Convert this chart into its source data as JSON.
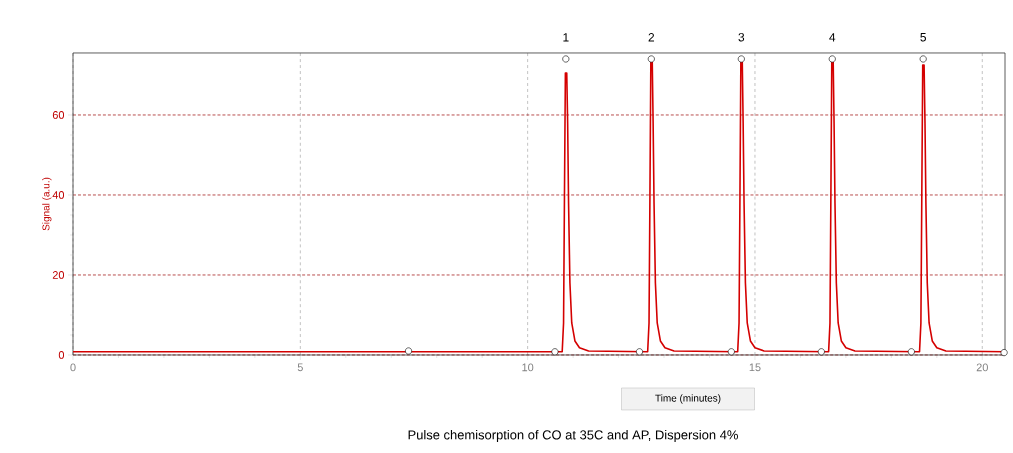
{
  "chart_data": {
    "type": "line",
    "title": "Pulse chemisorption of CO at 35C and AP, Dispersion 4%",
    "xlabel": "Time (minutes)",
    "ylabel": "Signal (a.u.)",
    "annotations": [
      {
        "text": "1",
        "x": 10.84,
        "y": 74
      },
      {
        "text": "2",
        "x": 12.72,
        "y": 74
      },
      {
        "text": "3",
        "x": 14.7,
        "y": 74
      },
      {
        "text": "4",
        "x": 16.7,
        "y": 74
      },
      {
        "text": "5",
        "x": 18.7,
        "y": 74
      }
    ],
    "xlim": [
      0,
      20.5
    ],
    "ylim": [
      0,
      75.5
    ],
    "xticks": [
      0,
      5,
      10,
      15,
      20
    ],
    "yticks": [
      0,
      20,
      40,
      60
    ],
    "grid": true,
    "series": [
      {
        "color": "#d40000",
        "marker": "none",
        "x": [
          0,
          10.76,
          10.79,
          10.81,
          10.83,
          10.86,
          10.88,
          10.9,
          10.93,
          10.97,
          11.04,
          11.14,
          11.34,
          12.64,
          12.67,
          12.69,
          12.71,
          12.74,
          12.76,
          12.78,
          12.81,
          12.85,
          12.92,
          13.02,
          13.22,
          14.62,
          14.65,
          14.67,
          14.69,
          14.72,
          14.74,
          14.76,
          14.79,
          14.83,
          14.9,
          15.0,
          15.2,
          16.62,
          16.65,
          16.67,
          16.69,
          16.72,
          16.74,
          16.76,
          16.79,
          16.83,
          16.9,
          17.0,
          17.2,
          18.62,
          18.65,
          18.67,
          18.69,
          18.72,
          18.74,
          18.76,
          18.79,
          18.83,
          18.9,
          19.0,
          19.2,
          20.5
        ],
        "values": [
          0.8,
          0.8,
          8,
          40,
          70.5,
          70.5,
          58,
          38,
          18,
          8,
          3.5,
          1.8,
          1.0,
          0.8,
          8,
          40,
          74,
          74,
          58,
          38,
          18,
          8,
          3.5,
          1.8,
          1.0,
          0.8,
          8,
          40,
          74,
          74,
          58,
          38,
          18,
          8,
          3.5,
          1.8,
          1.0,
          0.8,
          8,
          40,
          74,
          74,
          58,
          38,
          18,
          8,
          3.5,
          1.8,
          1.0,
          0.8,
          8,
          40,
          72.5,
          72.5,
          58,
          38,
          18,
          8,
          3.5,
          1.8,
          1.0,
          0.8
        ]
      },
      {
        "type": "scatter",
        "color": "#000000",
        "marker": "circle",
        "x": [
          7.38,
          10.6,
          10.84,
          12.46,
          12.72,
          14.48,
          14.7,
          16.46,
          16.7,
          18.44,
          18.7,
          20.48
        ],
        "values": [
          1,
          0.8,
          74,
          0.8,
          74,
          0.8,
          74,
          0.8,
          74,
          0.8,
          74,
          0.6
        ]
      }
    ]
  }
}
